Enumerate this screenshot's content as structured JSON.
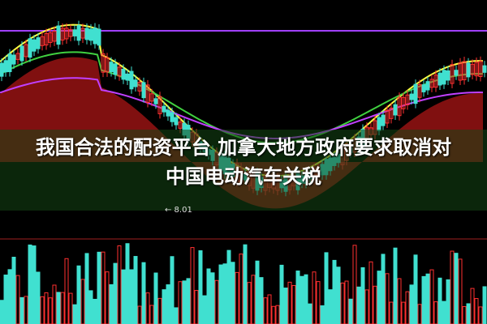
{
  "headline": {
    "line1": "我国合法的配资平台 加拿大地方政府要求取消对",
    "line2": "中国电动汽车关税"
  },
  "chart_data": {
    "type": "candlestick",
    "annotations": {
      "low_price_label": "← 8.01"
    },
    "colors": {
      "up": "#ff3030",
      "down": "#40e0d0",
      "fill_up": "#ff2020",
      "fill_down": "#30ff60",
      "ma_fast": "#ffff40",
      "ma_mid": "#40d040",
      "ma_slow": "#c040ff",
      "background": "#000000"
    }
  }
}
